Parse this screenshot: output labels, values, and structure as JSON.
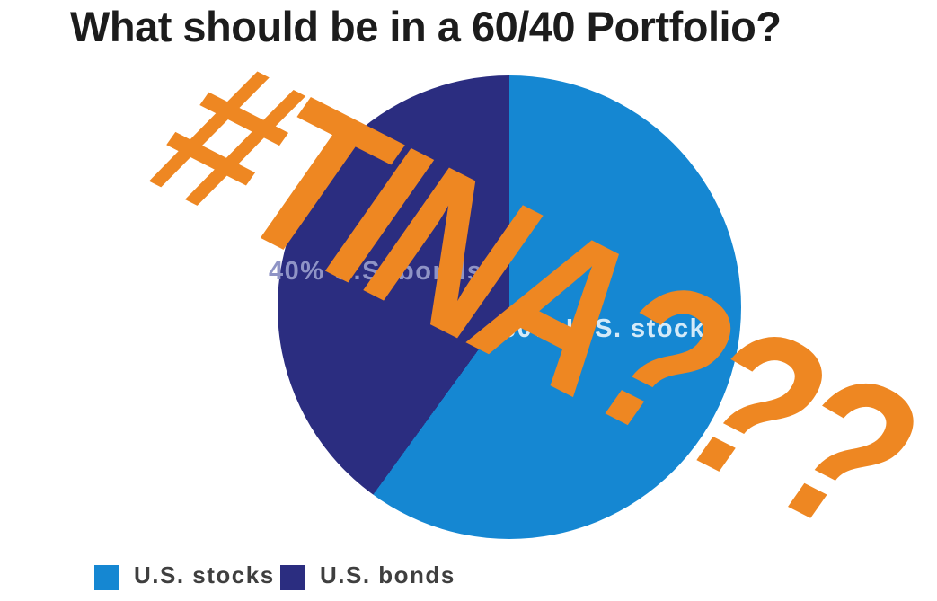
{
  "title": "What should be in a 60/40 Portfolio?",
  "overlay": {
    "text": "#TINA???",
    "color": "#ee8722"
  },
  "chart_data": {
    "type": "pie",
    "title": "What should be in a 60/40 Portfolio?",
    "categories": [
      "U.S. stocks",
      "U.S. bonds"
    ],
    "values": [
      60,
      40
    ],
    "slices": [
      {
        "label": "U.S. stocks",
        "value": 60,
        "color": "#1587d2",
        "slice_label": "60% U.S. stocks"
      },
      {
        "label": "U.S. bonds",
        "value": 40,
        "color": "#2b2d80",
        "slice_label": "40% U.S. bonds"
      }
    ],
    "start_angle_deg": 0,
    "direction": "clockwise",
    "legend_position": "bottom"
  },
  "slice_labels": {
    "stocks": "60% U.S. stocks",
    "bonds": "40% U.S. bonds"
  },
  "legend": {
    "items": [
      {
        "label": "U.S. stocks",
        "color": "#1587d2"
      },
      {
        "label": "U.S. bonds",
        "color": "#2b2d80"
      }
    ]
  },
  "colors": {
    "stocks_blue": "#1587d2",
    "bonds_navy": "#2b2d80",
    "overlay_orange": "#ee8722",
    "title_text": "#1c1c1c",
    "legend_text": "#3f3f3f",
    "stocks_label_text": "#d4eaf8",
    "bonds_label_text": "#8f94c6",
    "background": "#ffffff"
  }
}
